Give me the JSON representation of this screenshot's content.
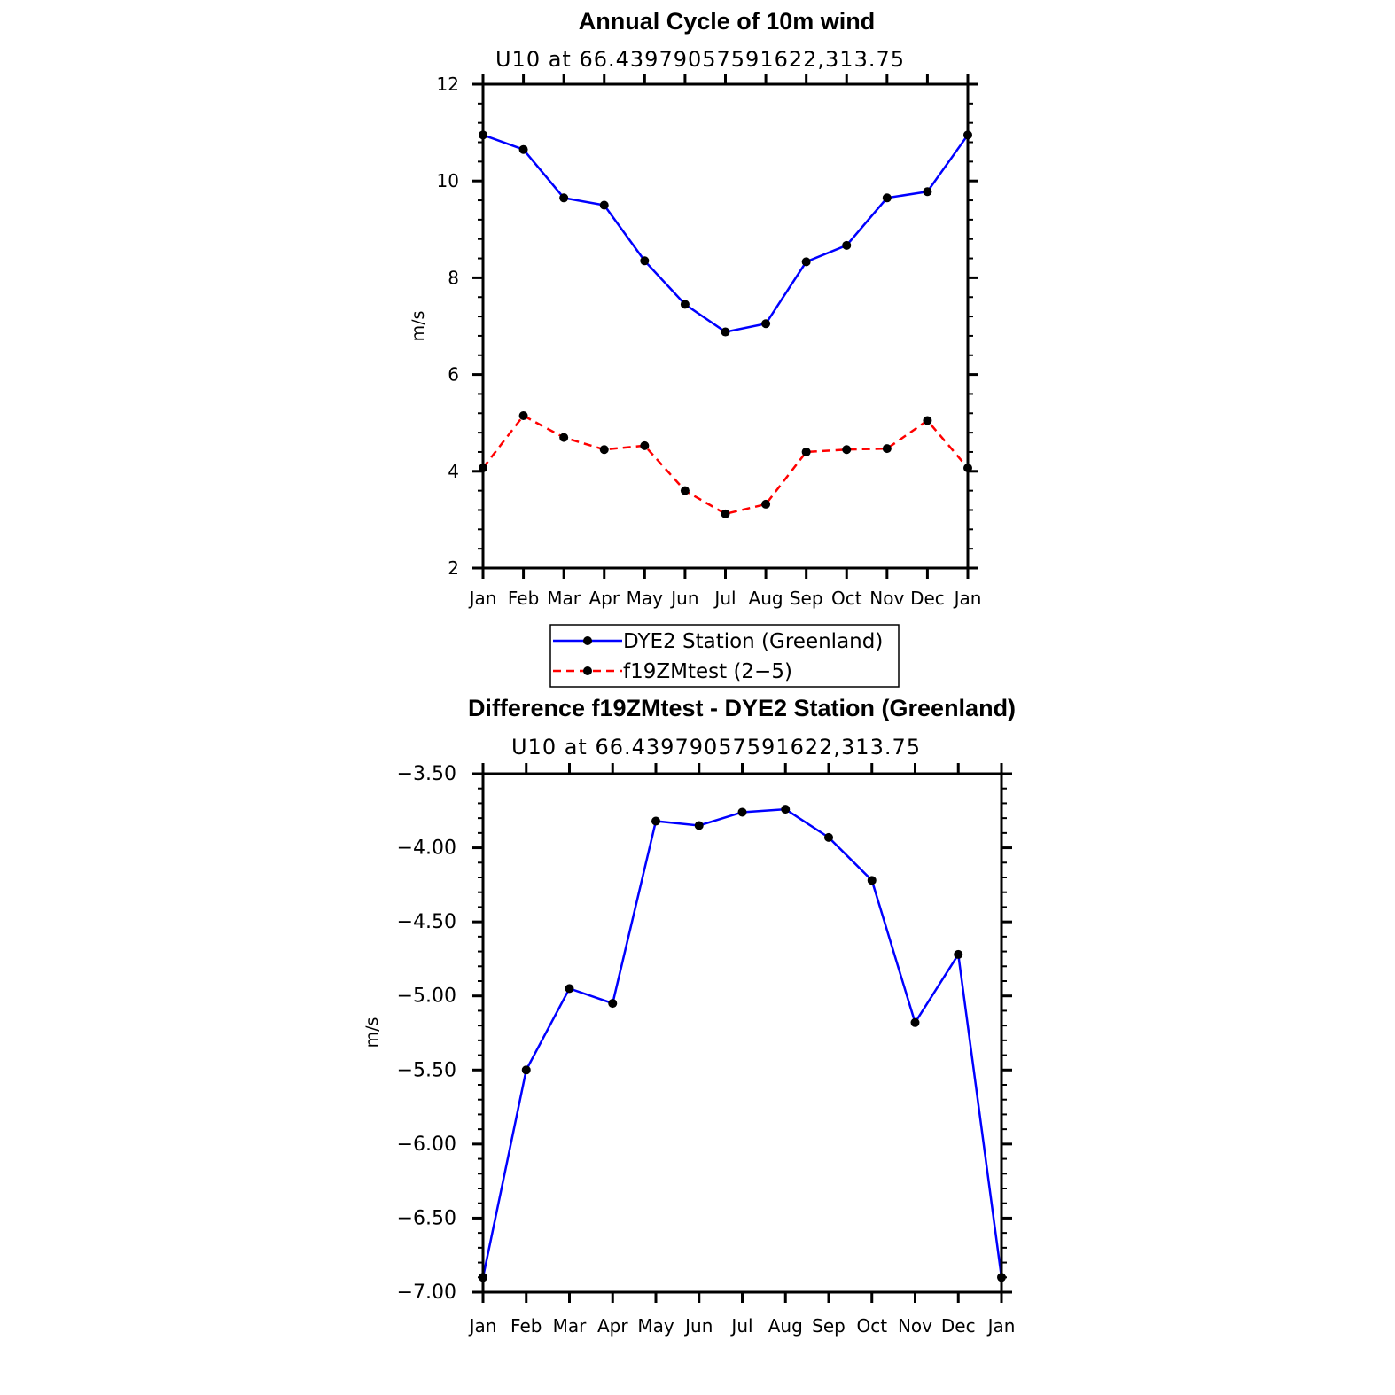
{
  "chart_data": [
    {
      "type": "line",
      "title": "Annual Cycle of 10m wind",
      "subtitle": "U10 at 66.43979057591622,313.75",
      "ylabel": "m/s",
      "xlabel": "",
      "categories": [
        "Jan",
        "Feb",
        "Mar",
        "Apr",
        "May",
        "Jun",
        "Jul",
        "Aug",
        "Sep",
        "Oct",
        "Nov",
        "Dec",
        "Jan"
      ],
      "ylim": [
        2,
        12
      ],
      "yticks": [
        "2",
        "4",
        "6",
        "8",
        "10",
        "12"
      ],
      "grid": false,
      "legend_position": "bottom",
      "series": [
        {
          "name": "DYE2 Station (Greenland)",
          "color": "#0000ff",
          "dash": "solid",
          "values": [
            10.95,
            10.65,
            9.65,
            9.5,
            8.35,
            7.45,
            6.88,
            7.05,
            8.33,
            8.67,
            9.65,
            9.78,
            10.95
          ]
        },
        {
          "name": "f19ZMtest (2−5)",
          "color": "#ff0000",
          "dash": "dashed",
          "values": [
            4.07,
            5.15,
            4.7,
            4.45,
            4.53,
            3.6,
            3.12,
            3.32,
            4.4,
            4.45,
            4.47,
            5.05,
            4.07
          ]
        }
      ]
    },
    {
      "type": "line",
      "title": "Difference f19ZMtest - DYE2 Station (Greenland)",
      "subtitle": "U10 at 66.43979057591622,313.75",
      "ylabel": "m/s",
      "xlabel": "",
      "categories": [
        "Jan",
        "Feb",
        "Mar",
        "Apr",
        "May",
        "Jun",
        "Jul",
        "Aug",
        "Sep",
        "Oct",
        "Nov",
        "Dec",
        "Jan"
      ],
      "ylim": [
        -7.0,
        -3.5
      ],
      "yticks": [
        "−3.50",
        "−4.00",
        "−4.50",
        "−5.00",
        "−5.50",
        "−6.00",
        "−6.50",
        "−7.00"
      ],
      "grid": false,
      "series": [
        {
          "color": "#0000ff",
          "dash": "solid",
          "values": [
            -6.9,
            -5.5,
            -4.95,
            -5.05,
            -3.82,
            -3.85,
            -3.76,
            -3.74,
            -3.93,
            -4.22,
            -5.18,
            -4.72,
            -6.9
          ]
        }
      ]
    }
  ]
}
